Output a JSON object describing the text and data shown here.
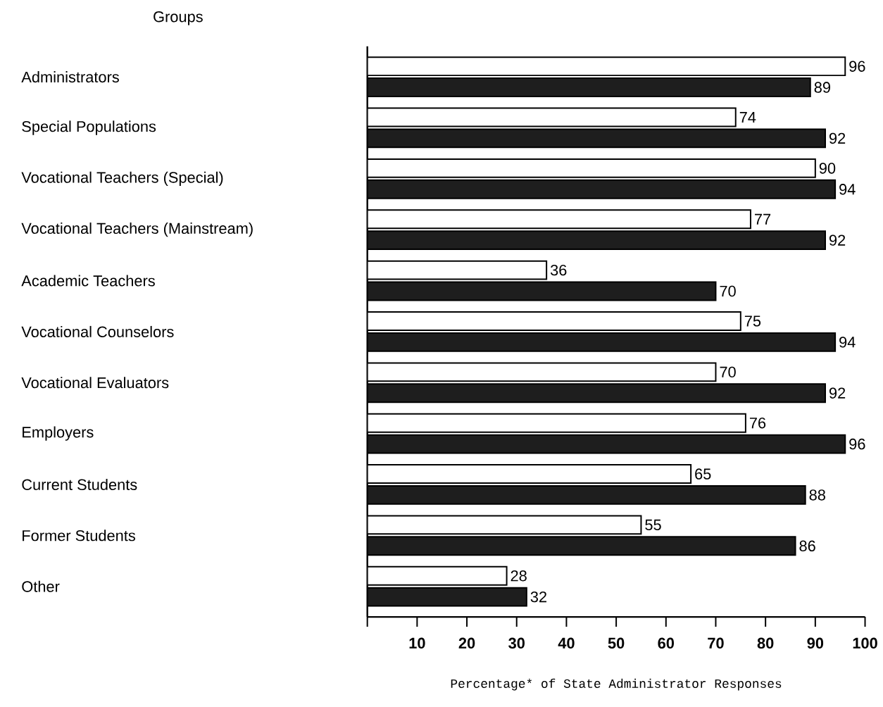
{
  "chart_data": {
    "type": "bar",
    "orientation": "horizontal",
    "annotations": [
      "Groups"
    ],
    "xlabel": "Percentage* of State Administrator Responses",
    "categories": [
      "Administrators",
      "Special Populations",
      "Vocational Teachers (Special)",
      "Vocational Teachers (Mainstream)",
      "Academic Teachers",
      "Vocational Counselors",
      "Vocational Evaluators",
      "Employers",
      "Current Students",
      "Former Students",
      "Other"
    ],
    "series": [
      {
        "color": "#ffffff",
        "values": [
          96,
          74,
          90,
          77,
          36,
          75,
          70,
          76,
          65,
          55,
          28
        ]
      },
      {
        "color": "#1e1e1e",
        "values": [
          89,
          92,
          94,
          92,
          70,
          94,
          92,
          96,
          88,
          86,
          32
        ]
      }
    ],
    "xlim": [
      0,
      100
    ],
    "xticks": [
      {
        "value": 0,
        "label": null
      },
      10,
      20,
      30,
      40,
      50,
      60,
      70,
      80,
      90,
      100
    ],
    "data_labels": true,
    "grid": false
  }
}
